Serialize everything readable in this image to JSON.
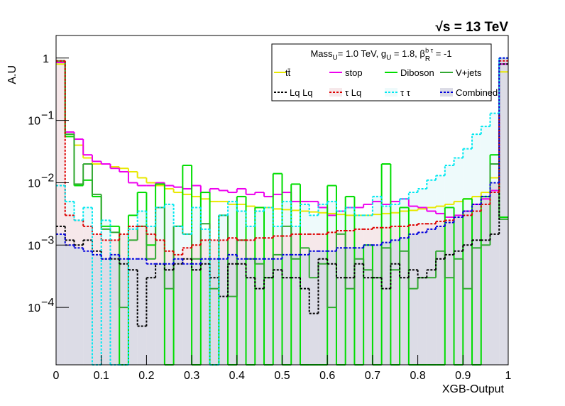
{
  "chart_data": {
    "type": "histogram",
    "energy_label": "√s = 13 TeV",
    "y_label": "A.U",
    "x_label": "XGB-Output",
    "legend_header": {
      "mass": "Mass",
      "mass_sub": "U",
      "mass_val": "= 1.0 TeV, g",
      "g_sub": "U",
      "g_val": " = 1.8, β",
      "beta_sub": "R",
      "beta_sup": "b τ",
      "beta_val": " = -1"
    },
    "log_y": true,
    "bins": [
      0,
      0.02,
      0.04,
      0.06,
      0.08,
      0.1,
      0.12,
      0.14,
      0.16,
      0.18,
      0.2,
      0.22,
      0.24,
      0.26,
      0.28,
      0.3,
      0.32,
      0.34,
      0.36,
      0.38,
      0.4,
      0.42,
      0.44,
      0.46,
      0.48,
      0.5,
      0.52,
      0.54,
      0.56,
      0.58,
      0.6,
      0.62,
      0.64,
      0.66,
      0.68,
      0.7,
      0.72,
      0.74,
      0.76,
      0.78,
      0.8,
      0.82,
      0.84,
      0.86,
      0.88,
      0.9,
      0.92,
      0.94,
      0.96,
      0.98,
      1
    ],
    "xlim": [
      0,
      1
    ],
    "xticks": [
      0,
      0.1,
      0.2,
      0.3,
      0.4,
      0.5,
      0.6,
      0.7,
      0.8,
      0.9,
      1
    ],
    "ylim": [
      1.2e-05,
      2.3
    ],
    "yticks": [
      {
        "value": 0.0001,
        "label": "10",
        "exponent": "−4"
      },
      {
        "value": 0.001,
        "label": "10",
        "exponent": "−3"
      },
      {
        "value": 0.01,
        "label": "10",
        "exponent": "−2"
      },
      {
        "value": 0.1,
        "label": "10",
        "exponent": "−1"
      },
      1
    ],
    "series": [
      {
        "name": "tt̄",
        "color": "#e8e800",
        "dashed": false,
        "fill": null,
        "values": [
          0.8,
          0.06,
          0.04,
          0.025,
          0.02,
          0.02,
          0.018,
          0.017,
          0.015,
          0.012,
          0.01,
          0.009,
          0.008,
          0.007,
          0.0065,
          0.006,
          0.0055,
          0.005,
          0.005,
          0.0045,
          0.0045,
          0.0042,
          0.004,
          0.004,
          0.0038,
          0.0037,
          0.0036,
          0.0035,
          0.0034,
          0.0033,
          0.0032,
          0.0031,
          0.003,
          0.003,
          0.003,
          0.0031,
          0.0032,
          0.0033,
          0.0035,
          0.0036,
          0.0038,
          0.004,
          0.0042,
          0.0045,
          0.005,
          0.0055,
          0.006,
          0.007,
          0.012,
          0.6
        ]
      },
      {
        "name": "stop",
        "color": "#ee00ee",
        "dashed": false,
        "fill": null,
        "values": [
          0.85,
          0.065,
          0.05,
          0.028,
          0.022,
          0.02,
          0.017,
          0.015,
          0.01,
          0.009,
          0.009,
          0.01,
          0.009,
          0.0085,
          0.008,
          0.009,
          0.007,
          0.008,
          0.0075,
          0.007,
          0.008,
          0.0065,
          0.007,
          0.006,
          0.0065,
          0.007,
          0.005,
          0.005,
          0.005,
          0.004,
          0.003,
          0.0035,
          0.004,
          0.004,
          0.0045,
          0.005,
          0.0045,
          0.005,
          0.0055,
          0.0042,
          0.004,
          0.0035,
          0.0032,
          0.0028,
          0.003,
          0.0035,
          0.0045,
          0.0055,
          0.0075,
          0.8
        ]
      },
      {
        "name": "Diboson",
        "color": "#00dd00",
        "dashed": false,
        "fill": null,
        "values": [
          0.9,
          0.055,
          0.009,
          0.011,
          0.006,
          0.002,
          0.002,
          0,
          0.003,
          0.007,
          0.001,
          0.0095,
          0,
          0.002,
          0.019,
          0,
          0.007,
          0,
          0.003,
          0,
          0.006,
          0,
          0.004,
          0,
          0.014,
          0,
          0.0095,
          0,
          0,
          0,
          0.009,
          0,
          0.006,
          0,
          0.001,
          0,
          0.02,
          0,
          0.004,
          0,
          0,
          0,
          0,
          0.004,
          0,
          0.0055,
          0,
          0.006,
          0.028,
          0.0028
        ]
      },
      {
        "name": "V+jets",
        "color": "#33a833",
        "dashed": false,
        "fill": null,
        "values": [
          0.9,
          0.06,
          0.0095,
          0.02,
          0.0065,
          0.0018,
          0.0016,
          0.0001,
          0.0012,
          0.002,
          0.0006,
          0.004,
          0.0002,
          0.002,
          0.0015,
          0.0006,
          0.0022,
          0.0002,
          0.003,
          0.00015,
          0.0012,
          0.0006,
          0.0005,
          0.0003,
          0.0007,
          0.002,
          0.0006,
          0.0009,
          0.0003,
          0.0005,
          0.0001,
          0.0015,
          0.0002,
          0.0006,
          0.0004,
          0.0003,
          0.0009,
          0.0004,
          0.0008,
          0.0002,
          0.0003,
          0.0003,
          0.0008,
          0.0003,
          0.0006,
          0.0002,
          0.0009,
          0.001,
          0.02,
          0.0026
        ]
      },
      {
        "name": "Lq Lq",
        "color": "#000000",
        "dashed": true,
        "fill": null,
        "values": [
          0.002,
          0.0012,
          0.001,
          0.0012,
          0.0008,
          0.0006,
          0.0006,
          0.0005,
          0.0004,
          5e-05,
          0.0003,
          0.0005,
          0.0004,
          0.0005,
          0.0006,
          0.0004,
          0.0005,
          0.0003,
          0.00015,
          0.0005,
          0.0005,
          0.0003,
          0.0002,
          0.0003,
          0.0004,
          0.0003,
          0.0003,
          0.0002,
          8e-05,
          0.0006,
          0.0005,
          0.0003,
          0.0003,
          0.0005,
          0.0003,
          0.0003,
          0.0002,
          0.0005,
          0.0003,
          0.0004,
          0.0003,
          0.0004,
          0.0006,
          0.0007,
          0.0008,
          0.001,
          0.0012,
          0.0012,
          0.0015,
          0.8
        ]
      },
      {
        "name": "τ Lq",
        "color": "#dd0000",
        "dashed": true,
        "fill": "#f6e8ea",
        "values": [
          0.9,
          0.003,
          0.0025,
          0.002,
          0.0015,
          0.0012,
          0.0012,
          0.0015,
          0.002,
          0.002,
          0.0015,
          0.0012,
          0.0008,
          0.0007,
          0.0009,
          0.001,
          0.0012,
          0.0012,
          0.0012,
          0.0013,
          0.0012,
          0.0012,
          0.0013,
          0.0013,
          0.0014,
          0.0014,
          0.0015,
          0.0015,
          0.0015,
          0.0015,
          0.0016,
          0.0017,
          0.0017,
          0.0018,
          0.0018,
          0.0019,
          0.0019,
          0.002,
          0.002,
          0.0021,
          0.0022,
          0.0022,
          0.0024,
          0.0025,
          0.0028,
          0.003,
          0.0035,
          0.0045,
          0.007,
          0.9
        ]
      },
      {
        "name": "τ τ",
        "color": "#00e8f0",
        "dashed": true,
        "fill": "#eefafb",
        "values": [
          0.009,
          0.005,
          0.0025,
          0.004,
          0,
          0.0025,
          0,
          0,
          0.0018,
          0.0035,
          0.002,
          0.004,
          0.0045,
          0.002,
          0.0015,
          0.004,
          0.0018,
          0,
          0.003,
          0.005,
          0.0035,
          0.002,
          0.0035,
          0.004,
          0.002,
          0.005,
          0.002,
          0.0045,
          0.003,
          0.0045,
          0.005,
          0.0035,
          0.004,
          0.003,
          0.003,
          0.006,
          0.0042,
          0.0045,
          0.0055,
          0.007,
          0.008,
          0.011,
          0.013,
          0.019,
          0.025,
          0.035,
          0.06,
          0.08,
          0.13,
          1.0
        ]
      },
      {
        "name": "Combined",
        "color": "#0000dd",
        "dashed": true,
        "fill": "#dcdce6",
        "values": [
          0.0015,
          0.001,
          0.0009,
          0.0008,
          0.0007,
          0.0006,
          0.0007,
          0.0006,
          0.0006,
          0.0006,
          0.0005,
          0.0005,
          0.0005,
          0.0006,
          0.0005,
          0.0005,
          0.0006,
          0.0006,
          0.0006,
          0.0007,
          0.0006,
          0.0006,
          0.0006,
          0.0006,
          0.0006,
          0.0007,
          0.0007,
          0.0007,
          0.0008,
          0.0008,
          0.0008,
          0.0009,
          0.0009,
          0.0009,
          0.001,
          0.001,
          0.0011,
          0.0012,
          0.0013,
          0.0015,
          0.0016,
          0.0018,
          0.002,
          0.0023,
          0.0028,
          0.0035,
          0.0045,
          0.006,
          0.01,
          1.0
        ]
      }
    ],
    "fill_order": [
      6,
      5,
      7
    ]
  }
}
